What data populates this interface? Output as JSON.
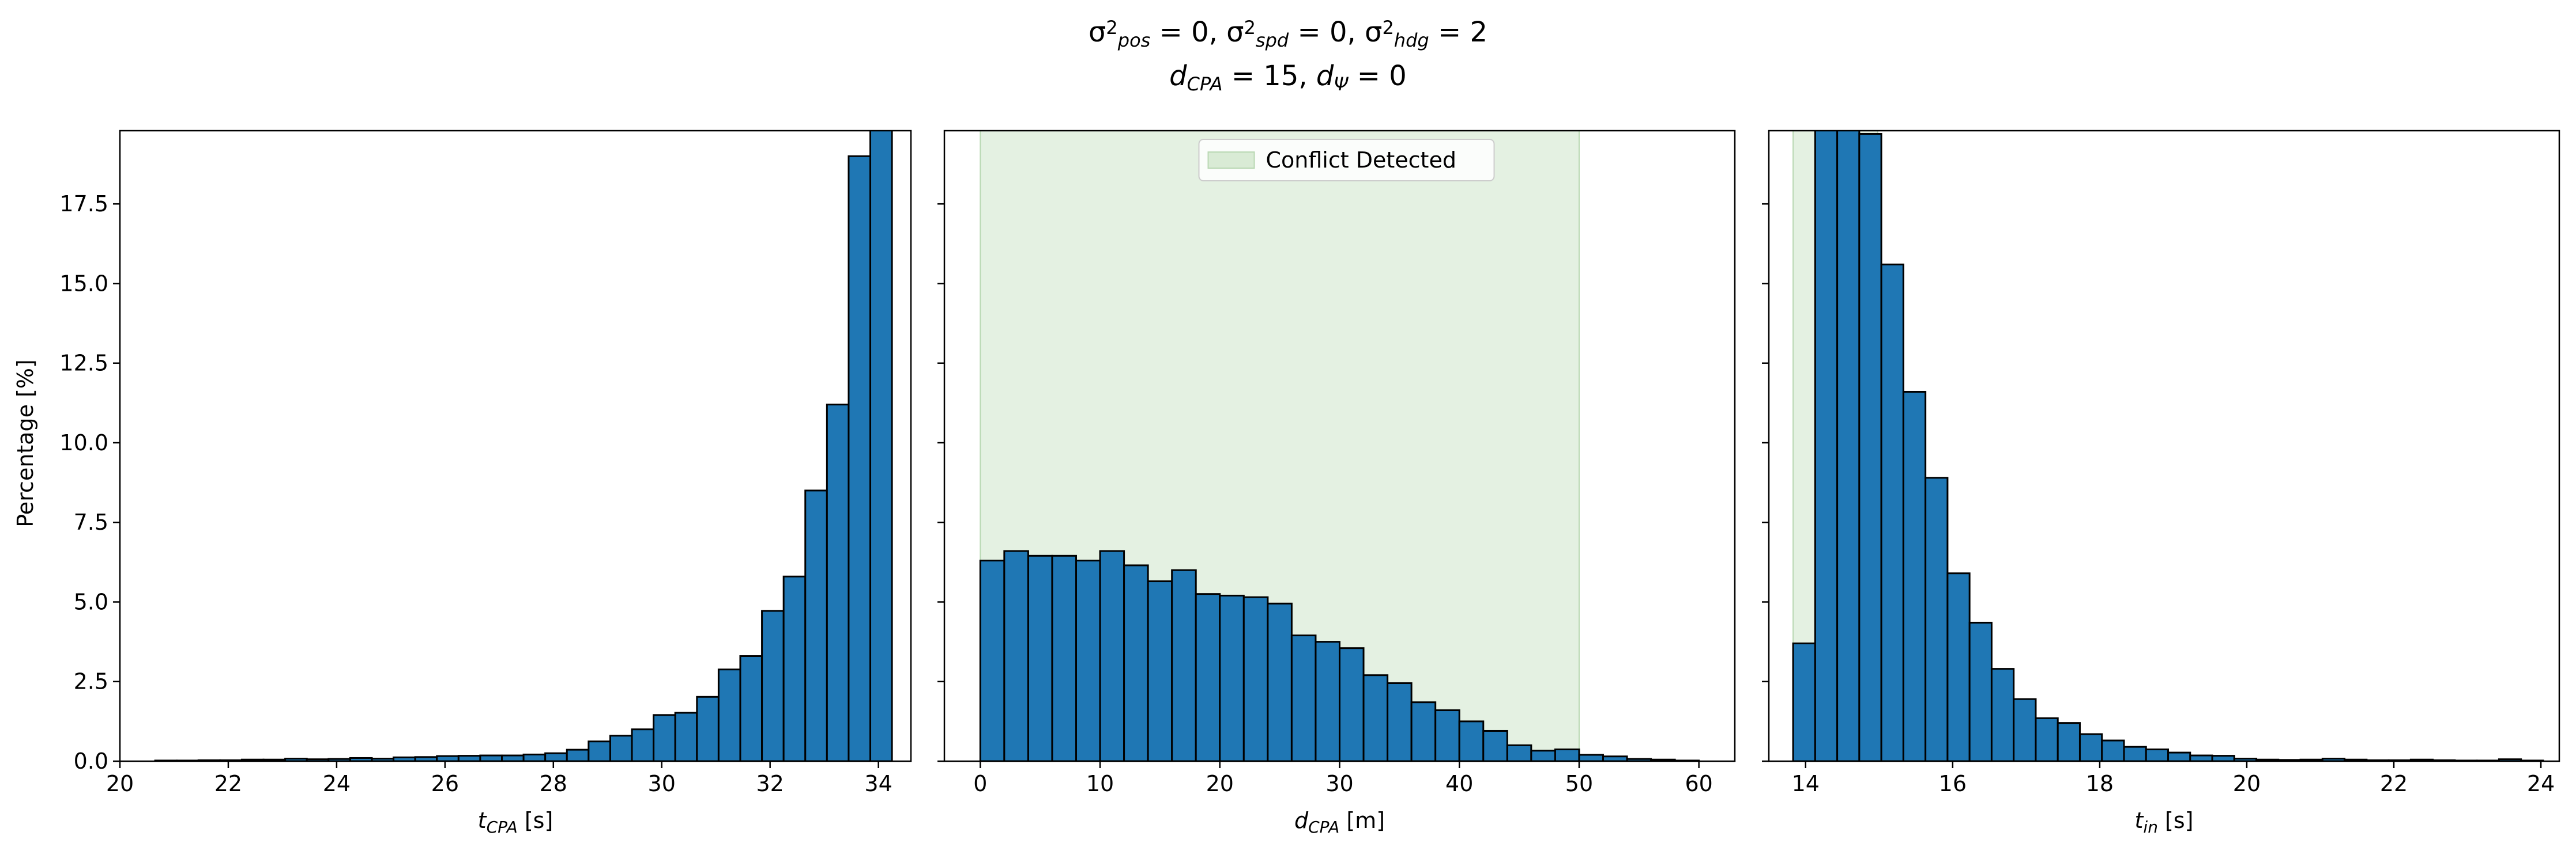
{
  "suptitle": {
    "line1": [
      {
        "t": "σ",
        "s": "n"
      },
      {
        "t": "2",
        "s": "sup"
      },
      {
        "t": "pos",
        "s": "sub"
      },
      {
        "t": " = 0, ",
        "s": "n"
      },
      {
        "t": "σ",
        "s": "n"
      },
      {
        "t": "2",
        "s": "sup"
      },
      {
        "t": "spd",
        "s": "sub"
      },
      {
        "t": " = 0, ",
        "s": "n"
      },
      {
        "t": "σ",
        "s": "n"
      },
      {
        "t": "2",
        "s": "sup"
      },
      {
        "t": "hdg",
        "s": "sub"
      },
      {
        "t": " = 2",
        "s": "n"
      }
    ],
    "line2": [
      {
        "t": "d",
        "s": "i"
      },
      {
        "t": "CPA",
        "s": "sub"
      },
      {
        "t": " = 15, ",
        "s": "n"
      },
      {
        "t": "d",
        "s": "i"
      },
      {
        "t": "Ψ",
        "s": "sub"
      },
      {
        "t": " = 0",
        "s": "n"
      }
    ]
  },
  "colors": {
    "bar_fill": "#1f77b4",
    "bar_edge": "#000000",
    "conflict_fill": "#d9ebd5"
  },
  "shared_y": {
    "label": "Percentage [%]",
    "ticks": [
      0.0,
      2.5,
      5.0,
      7.5,
      10.0,
      12.5,
      15.0,
      17.5
    ],
    "tick_labels": [
      "0.0",
      "2.5",
      "5.0",
      "7.5",
      "10.0",
      "12.5",
      "15.0",
      "17.5"
    ],
    "ylim": [
      0,
      19.8
    ]
  },
  "chart_data": [
    {
      "type": "bar",
      "xlabel": {
        "main": "t",
        "sub": "CPA",
        "unit": " [s]"
      },
      "xlim": [
        20,
        34.6
      ],
      "xticks": [
        20,
        22,
        24,
        26,
        28,
        30,
        32,
        34
      ],
      "bin_start": 20.65,
      "bin_width": 0.4,
      "values": [
        0.02,
        0.02,
        0.03,
        0.03,
        0.05,
        0.05,
        0.08,
        0.06,
        0.07,
        0.1,
        0.08,
        0.12,
        0.13,
        0.16,
        0.17,
        0.18,
        0.18,
        0.21,
        0.25,
        0.36,
        0.62,
        0.8,
        1.0,
        1.45,
        1.52,
        2.02,
        2.88,
        3.3,
        4.72,
        5.8,
        8.5,
        11.2,
        19.0,
        20.3
      ],
      "conflict_band": null,
      "legend": null
    },
    {
      "type": "bar",
      "xlabel": {
        "main": "d",
        "sub": "CPA",
        "unit": " [m]"
      },
      "xlim": [
        -3,
        63
      ],
      "xticks": [
        0,
        10,
        20,
        30,
        40,
        50,
        60
      ],
      "bin_start": 0,
      "bin_width": 2.0,
      "values": [
        6.3,
        6.6,
        6.45,
        6.45,
        6.3,
        6.6,
        6.15,
        5.65,
        6.0,
        5.25,
        5.2,
        5.15,
        4.95,
        3.95,
        3.75,
        3.55,
        2.7,
        2.45,
        1.85,
        1.6,
        1.25,
        0.95,
        0.5,
        0.33,
        0.37,
        0.2,
        0.15,
        0.07,
        0.05,
        0.02
      ],
      "conflict_band": [
        0,
        50
      ],
      "legend": {
        "label": "Conflict Detected",
        "position": "top-center"
      }
    },
    {
      "type": "bar",
      "xlabel": {
        "main": "t",
        "sub": "in",
        "unit": " [s]"
      },
      "xlim": [
        13.5,
        24.25
      ],
      "xticks": [
        14,
        16,
        18,
        20,
        22,
        24
      ],
      "bin_start": 13.83,
      "bin_width": 0.3,
      "values": [
        3.7,
        26.0,
        20.0,
        19.7,
        15.6,
        11.6,
        8.9,
        5.9,
        4.35,
        2.9,
        1.95,
        1.35,
        1.2,
        0.85,
        0.65,
        0.45,
        0.37,
        0.27,
        0.18,
        0.17,
        0.08,
        0.05,
        0.04,
        0.05,
        0.08,
        0.05,
        0.03,
        0.03,
        0.05,
        0.03,
        0.02,
        0.02,
        0.06,
        0.02
      ],
      "conflict_band": [
        13.83,
        14.98
      ],
      "legend": null
    }
  ]
}
